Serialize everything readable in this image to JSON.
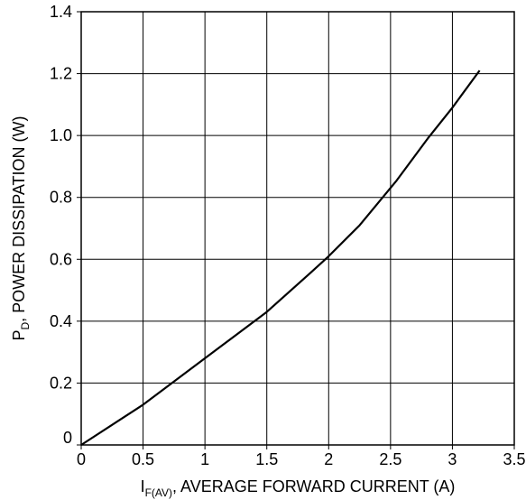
{
  "chart_data": {
    "type": "line",
    "title": "",
    "xlabel": {
      "main": "I",
      "subscript": "F(AV)",
      "rest": ", AVERAGE FORWARD CURRENT (A)"
    },
    "ylabel": {
      "main": "P",
      "subscript": "D",
      "rest": ", POWER DISSIPATION (W)"
    },
    "xlim": [
      0,
      3.5
    ],
    "ylim": [
      0,
      1.4
    ],
    "x_ticks": [
      "0",
      "0.5",
      "1",
      "1.5",
      "2",
      "2.5",
      "3",
      "3.5"
    ],
    "y_ticks": [
      "0",
      "0.2",
      "0.4",
      "0.6",
      "0.8",
      "1.0",
      "1.2",
      "1.4"
    ],
    "grid": true,
    "series": [
      {
        "x": [
          0,
          0.5,
          1.0,
          1.5,
          1.85,
          2.0,
          2.25,
          2.55,
          2.8,
          3.0,
          3.22
        ],
        "y": [
          0,
          0.13,
          0.28,
          0.43,
          0.555,
          0.61,
          0.71,
          0.855,
          0.99,
          1.09,
          1.21
        ]
      }
    ],
    "colors": {
      "line": "#000000",
      "grid": "#000000",
      "background": "#ffffff"
    }
  }
}
